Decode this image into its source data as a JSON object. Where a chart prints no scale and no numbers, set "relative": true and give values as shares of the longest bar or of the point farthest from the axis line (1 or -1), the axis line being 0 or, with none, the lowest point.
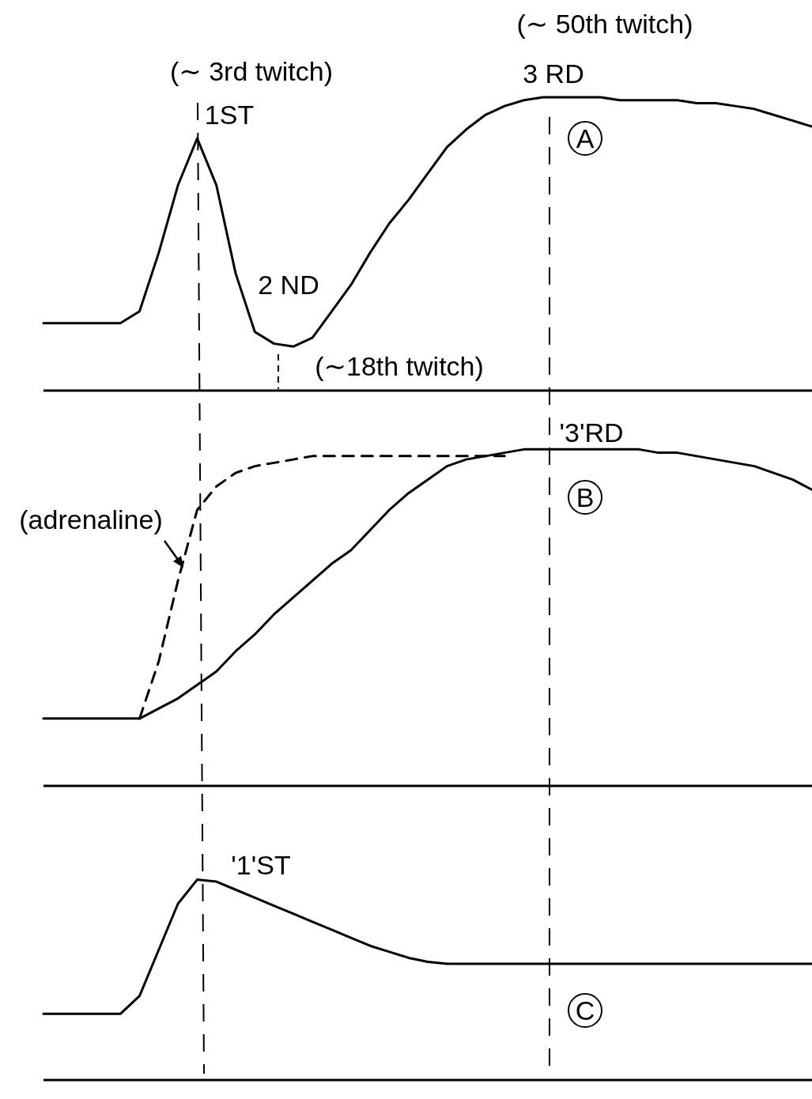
{
  "chart_data": [
    {
      "type": "line",
      "relative": true,
      "tick_labels": false,
      "marker": "none",
      "line_style": "solid",
      "categories": [
        null,
        null,
        null,
        null,
        null,
        null,
        null,
        null,
        null,
        null,
        null,
        null,
        null,
        null,
        null,
        null,
        null,
        null,
        null,
        null,
        null,
        null,
        null,
        null,
        null,
        null,
        null,
        null,
        null,
        null,
        null,
        null,
        null,
        null,
        null,
        null,
        null,
        null,
        null,
        null,
        null
      ],
      "series": [
        {
          "color": "#000000",
          "values": [
            0.23,
            0.23,
            0.23,
            0.23,
            0.23,
            0.27,
            0.47,
            0.7,
            0.86,
            0.7,
            0.4,
            0.2,
            0.16,
            0.15,
            0.18,
            0.27,
            0.36,
            0.47,
            0.57,
            0.65,
            0.74,
            0.83,
            0.89,
            0.94,
            0.97,
            0.99,
            1.0,
            1.0,
            1.0,
            1.0,
            0.99,
            0.99,
            0.99,
            0.99,
            0.98,
            0.98,
            0.97,
            0.96,
            0.94,
            0.92,
            0.9
          ]
        }
      ],
      "annotations": [
        "(∼ 50th twitch)",
        "(∼ 3rd twitch)",
        "3 RD",
        "1ST",
        "2 ND",
        "(∼18th twitch)",
        "A"
      ]
    },
    {
      "type": "line",
      "relative": true,
      "tick_labels": false,
      "marker": "none",
      "line_style": "solid",
      "categories": [
        null,
        null,
        null,
        null,
        null,
        null,
        null,
        null,
        null,
        null,
        null,
        null,
        null,
        null,
        null,
        null,
        null,
        null,
        null,
        null,
        null,
        null,
        null,
        null,
        null,
        null,
        null,
        null,
        null,
        null,
        null,
        null,
        null,
        null,
        null,
        null,
        null,
        null,
        null,
        null,
        null
      ],
      "series": [
        {
          "color": "#000000",
          "values": [
            0.2,
            0.2,
            0.2,
            0.2,
            0.2,
            0.2,
            0.23,
            0.26,
            0.3,
            0.34,
            0.4,
            0.45,
            0.51,
            0.56,
            0.61,
            0.66,
            0.7,
            0.76,
            0.82,
            0.87,
            0.91,
            0.95,
            0.97,
            0.98,
            0.99,
            1.0,
            1.0,
            1.0,
            1.0,
            1.0,
            1.0,
            1.0,
            0.99,
            0.99,
            0.98,
            0.97,
            0.96,
            0.95,
            0.93,
            0.91,
            0.88
          ]
        },
        {
          "color": "#000000",
          "line_style": "dashed",
          "values": [
            null,
            null,
            null,
            null,
            null,
            0.2,
            0.37,
            0.61,
            0.82,
            0.89,
            0.93,
            0.95,
            0.96,
            0.97,
            0.98,
            0.98,
            0.98,
            0.98,
            0.98,
            0.98,
            0.98,
            0.98,
            0.98,
            0.98,
            0.98,
            null,
            null,
            null,
            null,
            null,
            null,
            null,
            null,
            null,
            null,
            null,
            null,
            null,
            null,
            null,
            null
          ]
        }
      ],
      "annotations": [
        "'3'RD",
        "B",
        "(adrenaline)"
      ]
    },
    {
      "type": "line",
      "relative": true,
      "tick_labels": false,
      "marker": "none",
      "line_style": "solid",
      "categories": [
        null,
        null,
        null,
        null,
        null,
        null,
        null,
        null,
        null,
        null,
        null,
        null,
        null,
        null,
        null,
        null,
        null,
        null,
        null,
        null,
        null,
        null,
        null,
        null,
        null,
        null,
        null,
        null,
        null,
        null,
        null,
        null,
        null,
        null,
        null,
        null,
        null,
        null,
        null,
        null,
        null
      ],
      "series": [
        {
          "color": "#000000",
          "values": [
            0.33,
            0.33,
            0.33,
            0.33,
            0.33,
            0.42,
            0.65,
            0.88,
            1.0,
            0.99,
            0.95,
            0.91,
            0.87,
            0.83,
            0.79,
            0.75,
            0.71,
            0.67,
            0.64,
            0.61,
            0.59,
            0.58,
            0.58,
            0.58,
            0.58,
            0.58,
            0.58,
            0.58,
            0.58,
            0.58,
            0.58,
            0.58,
            0.58,
            0.58,
            0.58,
            0.58,
            0.58,
            0.58,
            0.58,
            0.58,
            0.58
          ]
        }
      ],
      "annotations": [
        "'1'ST",
        "C"
      ]
    }
  ]
}
